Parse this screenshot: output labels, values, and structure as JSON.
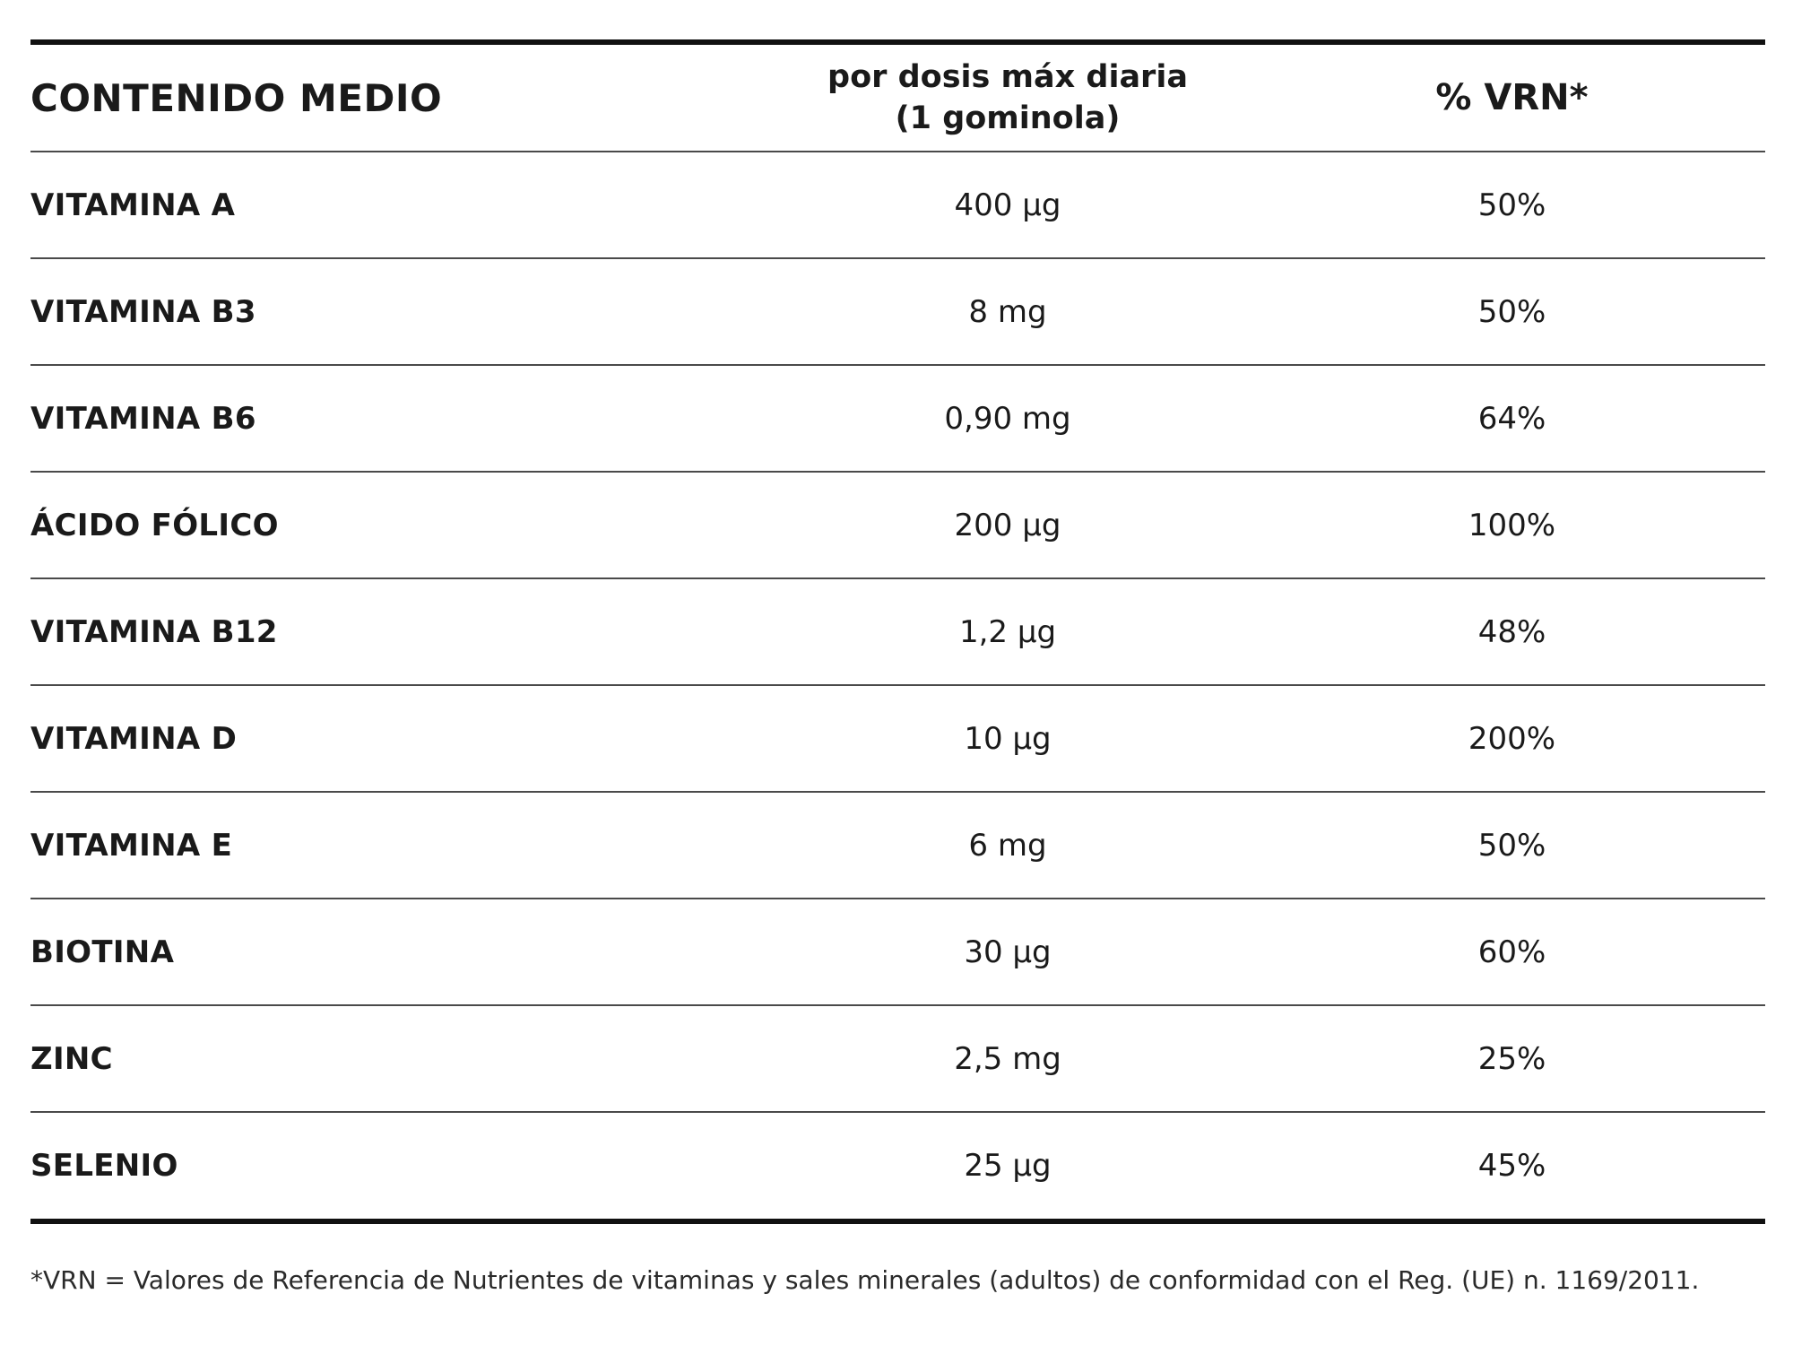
{
  "table": {
    "headers": {
      "name": "CONTENIDO MEDIO",
      "dose_line1": "por dosis máx diaria",
      "dose_line2": "(1 gominola)",
      "vrn": "% VRN*"
    },
    "rows": [
      {
        "name": "VITAMINA A",
        "dose": "400 µg",
        "vrn": "50%"
      },
      {
        "name": "VITAMINA B3",
        "dose": "8 mg",
        "vrn": "50%"
      },
      {
        "name": "VITAMINA B6",
        "dose": "0,90 mg",
        "vrn": "64%"
      },
      {
        "name": "ÁCIDO FÓLICO",
        "dose": "200 µg",
        "vrn": "100%"
      },
      {
        "name": "VITAMINA B12",
        "dose": "1,2 µg",
        "vrn": "48%"
      },
      {
        "name": "VITAMINA D",
        "dose": "10 µg",
        "vrn": "200%"
      },
      {
        "name": "VITAMINA E",
        "dose": "6 mg",
        "vrn": "50%"
      },
      {
        "name": "BIOTINA",
        "dose": "30 µg",
        "vrn": "60%"
      },
      {
        "name": "ZINC",
        "dose": "2,5 mg",
        "vrn": "25%"
      },
      {
        "name": "SELENIO",
        "dose": "25 µg",
        "vrn": "45%"
      }
    ]
  },
  "footnote": "*VRN = Valores de Referencia de Nutrientes de vitaminas y sales minerales (adultos) de conformidad con el Reg. (UE) n. 1169/2011."
}
